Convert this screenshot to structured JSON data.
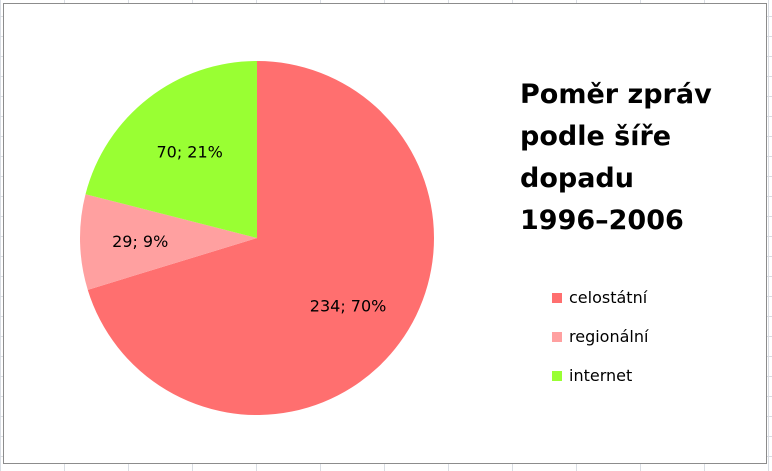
{
  "chart_data": {
    "type": "pie",
    "title": "Poměr zpráv\npodle šíře\ndopadu\n1996–2006",
    "legend_position": "right",
    "slices": [
      {
        "category": "celostátní",
        "value": 234,
        "percent": 70,
        "label": "234; 70%",
        "color": "#ff6f6f"
      },
      {
        "category": "regionální",
        "value": 29,
        "percent": 9,
        "label": "29; 9%",
        "color": "#ffa0a0"
      },
      {
        "category": "internet",
        "value": 70,
        "percent": 21,
        "label": "70; 21%",
        "color": "#99ff33"
      }
    ]
  }
}
